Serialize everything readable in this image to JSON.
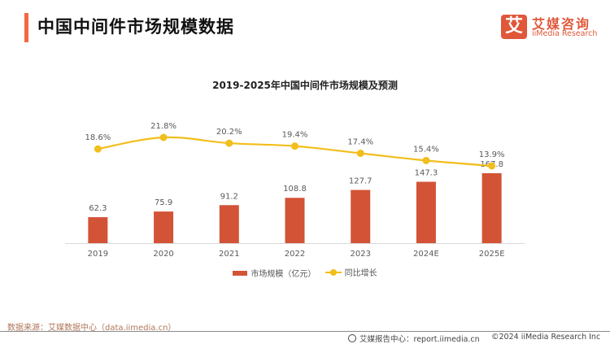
{
  "header": {
    "title": "中国中间件市场规模数据",
    "logo": {
      "glyph": "艾",
      "name_cn": "艾媒咨询",
      "name_en": "iiMedia Research",
      "brand_color": "#e0573a"
    }
  },
  "chart_data": {
    "type": "bar",
    "title": "2019-2025年中国中间件市场规模及预测",
    "categories": [
      "2019",
      "2020",
      "2021",
      "2022",
      "2023",
      "2024E",
      "2025E"
    ],
    "series": [
      {
        "name": "市场规模（亿元）",
        "type": "bar",
        "color": "#d35336",
        "values": [
          62.3,
          75.9,
          91.2,
          108.8,
          127.7,
          147.3,
          167.8
        ],
        "labels": [
          "62.3",
          "75.9",
          "91.2",
          "108.8",
          "127.7",
          "147.3",
          "167.8"
        ]
      },
      {
        "name": "同比增长",
        "type": "line",
        "color": "#f2be1b",
        "unit": "%",
        "values": [
          18.6,
          21.8,
          20.2,
          19.4,
          17.4,
          15.4,
          13.9
        ],
        "labels": [
          "18.6%",
          "21.8%",
          "20.2%",
          "19.4%",
          "17.4%",
          "15.4%",
          "13.9%"
        ]
      }
    ],
    "xlabel": "",
    "ylabel": "",
    "grid": false,
    "legend": "bottom"
  },
  "legend": {
    "bar_label": "市场规模（亿元）",
    "line_label": "同比增长"
  },
  "footer": {
    "source": "数据来源：艾媒数据中心（data.iimedia.cn）",
    "site": "艾媒报告中心：report.iimedia.cn",
    "copyright": "©2024  iiMedia Research  Inc"
  }
}
